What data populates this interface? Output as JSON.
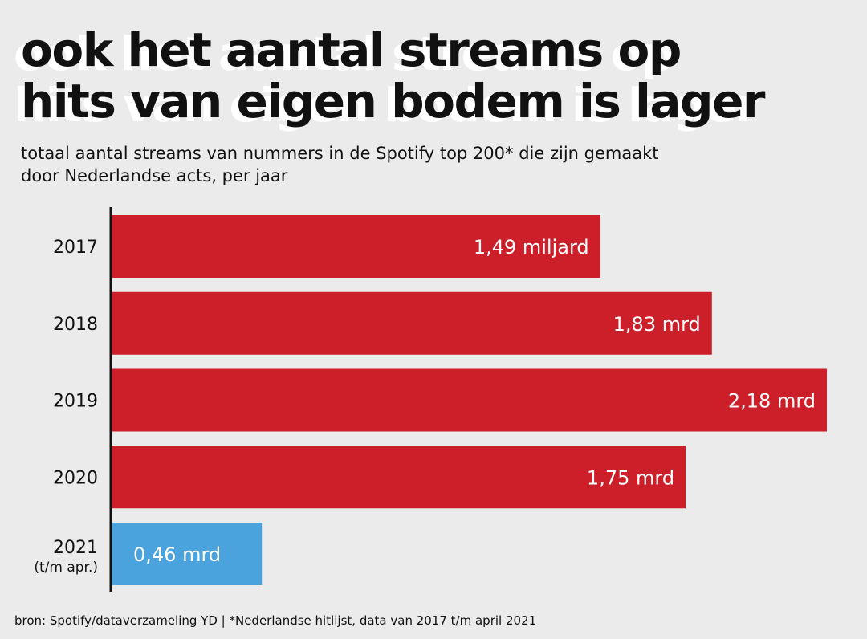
{
  "title_lines": [
    "ook het aantal streams op",
    "hits van eigen bodem is lager"
  ],
  "subtitle_lines": [
    "totaal aantal streams van nummers in de Spotify top 200* die zijn gemaakt",
    "door Nederlandse acts, per jaar"
  ],
  "footer": "bron: Spotify/dataverzameling YD | *Nederlandse hitlijst, data van 2017 t/m april 2021",
  "colors": {
    "background": "#ebebeb",
    "bar_default": "#cc1f2a",
    "bar_highlight": "#4aa3dc",
    "bar_label": "#ffffff",
    "text": "#111111"
  },
  "chart_data": {
    "type": "bar",
    "orientation": "horizontal",
    "categories": [
      [
        "2017"
      ],
      [
        "2018"
      ],
      [
        "2019"
      ],
      [
        "2020"
      ],
      [
        "2021",
        "(t/m apr.)"
      ]
    ],
    "values": [
      1.49,
      1.83,
      2.18,
      1.75,
      0.46
    ],
    "unit": "miljard streams",
    "labels": [
      "1,49 miljard",
      "1,83 mrd",
      "2,18 mrd",
      "1,75 mrd",
      "0,46 mrd"
    ],
    "highlight": [
      false,
      false,
      false,
      false,
      true
    ],
    "xlim": [
      0,
      2.18
    ],
    "grid": false
  }
}
